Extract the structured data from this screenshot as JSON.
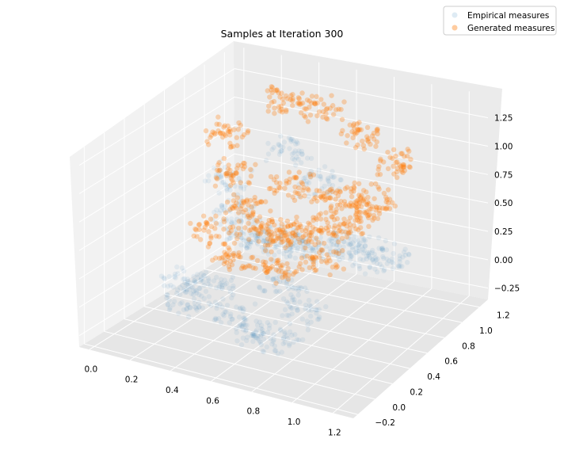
{
  "chart_data": {
    "type": "scatter",
    "title": "Samples at Iteration 300",
    "xlabel": "",
    "ylabel": "",
    "zlabel": "",
    "xlim": [
      -0.05,
      1.3
    ],
    "ylim": [
      -0.25,
      1.3
    ],
    "zlim": [
      -0.35,
      1.45
    ],
    "x_ticks": [
      "0.0",
      "0.2",
      "0.4",
      "0.6",
      "0.8",
      "1.0",
      "1.2"
    ],
    "y_ticks": [
      "−0.2",
      "0.0",
      "0.2",
      "0.4",
      "0.6",
      "0.8",
      "1.0",
      "1.2"
    ],
    "z_ticks": [
      "−0.25",
      "0.00",
      "0.25",
      "0.50",
      "0.75",
      "1.00",
      "1.25"
    ],
    "grid": true,
    "legend_position": "top-right",
    "series": [
      {
        "name": "Empirical measures",
        "color": "#1f77b4",
        "opacity": 0.08,
        "points": [
          [
            0.1,
            0.95,
            0.52
          ],
          [
            0.2,
            0.82,
            0.35
          ],
          [
            0.32,
            0.7,
            0.28
          ],
          [
            0.45,
            0.62,
            0.3
          ],
          [
            0.58,
            0.55,
            0.38
          ],
          [
            0.72,
            0.48,
            0.45
          ],
          [
            0.88,
            0.4,
            0.55
          ],
          [
            1.02,
            0.35,
            0.66
          ],
          [
            0.35,
            0.3,
            0.05
          ],
          [
            0.5,
            0.2,
            -0.05
          ],
          [
            0.65,
            0.12,
            -0.12
          ],
          [
            0.8,
            0.05,
            -0.08
          ],
          [
            0.15,
            0.4,
            -0.05
          ],
          [
            0.25,
            0.25,
            -0.1
          ],
          [
            0.95,
            0.7,
            0.3
          ],
          [
            1.1,
            0.6,
            0.42
          ],
          [
            0.6,
            0.9,
            0.7
          ],
          [
            0.4,
            1.0,
            0.85
          ],
          [
            0.7,
            0.3,
            0.2
          ],
          [
            0.85,
            0.2,
            0.1
          ]
        ]
      },
      {
        "name": "Generated measures",
        "color": "#ff7f0e",
        "opacity": 0.3,
        "points": [
          [
            0.05,
            1.05,
            0.85
          ],
          [
            0.15,
            0.9,
            0.6
          ],
          [
            0.28,
            0.78,
            0.45
          ],
          [
            0.42,
            0.66,
            0.38
          ],
          [
            0.55,
            0.58,
            0.42
          ],
          [
            0.7,
            0.5,
            0.52
          ],
          [
            0.85,
            0.45,
            0.66
          ],
          [
            1.0,
            0.4,
            0.82
          ],
          [
            1.12,
            0.36,
            1.0
          ],
          [
            0.3,
            1.1,
            1.2
          ],
          [
            0.55,
            1.05,
            1.25
          ],
          [
            0.8,
            0.95,
            1.15
          ],
          [
            1.05,
            0.8,
            1.1
          ],
          [
            0.2,
            0.6,
            0.3
          ],
          [
            0.4,
            0.45,
            0.22
          ],
          [
            0.65,
            0.35,
            0.3
          ],
          [
            0.9,
            0.3,
            0.5
          ],
          [
            0.5,
            0.8,
            0.7
          ],
          [
            0.75,
            0.7,
            0.75
          ],
          [
            1.0,
            0.6,
            0.9
          ]
        ]
      }
    ]
  }
}
